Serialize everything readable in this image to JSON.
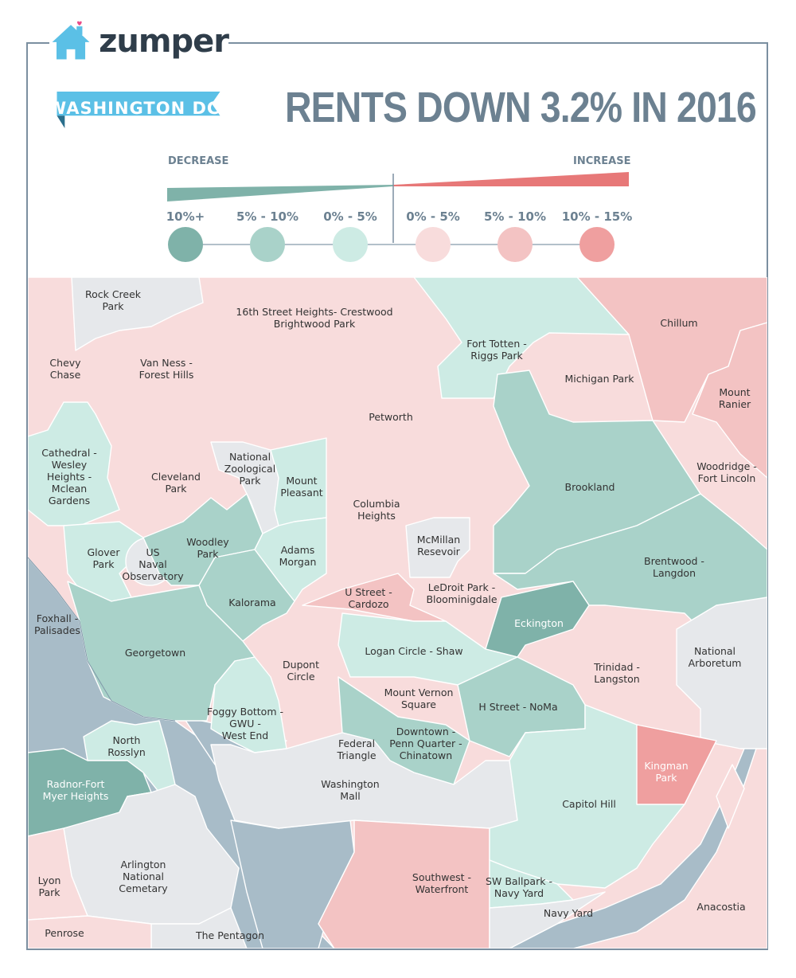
{
  "brand": {
    "name": "zumper",
    "logo_icon": "house-icon"
  },
  "banner": {
    "city": "WASHINGTON DC"
  },
  "headline": "RENTS DOWN 3.2% IN 2016",
  "legend": {
    "decrease_label": "DECREASE",
    "increase_label": "INCREASE",
    "ranges": [
      {
        "label": "10%+",
        "color": "#7fb2a9"
      },
      {
        "label": "5% - 10%",
        "color": "#a9d2c9"
      },
      {
        "label": "0% - 5%",
        "color": "#cdebe4"
      },
      {
        "label": "0% - 5%",
        "color": "#f8dcdc"
      },
      {
        "label": "5% - 10%",
        "color": "#f3c3c3"
      },
      {
        "label": "10% - 15%",
        "color": "#ef9f9f"
      }
    ]
  },
  "neighborhoods": [
    {
      "name": "Rock Creek\nPark"
    },
    {
      "name": "16th Street Heights- Crestwood\nBrightwood Park"
    },
    {
      "name": "Chillum"
    },
    {
      "name": "Fort Totten -\nRiggs Park"
    },
    {
      "name": "Chevy\nChase"
    },
    {
      "name": "Van Ness -\nForest Hills"
    },
    {
      "name": "Michigan  Park"
    },
    {
      "name": "Mount\nRanier"
    },
    {
      "name": "Petworth"
    },
    {
      "name": "Cathedral -\nWesley\nHeights -\nMclean\nGardens"
    },
    {
      "name": "Cleveland\nPark"
    },
    {
      "name": "National\nZoological\nPark"
    },
    {
      "name": "Mount\nPleasant"
    },
    {
      "name": "Woodridge -\nFort Lincoln"
    },
    {
      "name": "Brookland"
    },
    {
      "name": "Columbia\nHeights"
    },
    {
      "name": "McMillan\nResevoir"
    },
    {
      "name": "Glover\nPark"
    },
    {
      "name": "US\nNaval\nObservatory"
    },
    {
      "name": "Woodley\nPark"
    },
    {
      "name": "Adams\nMorgan"
    },
    {
      "name": "Brentwood -\nLangdon"
    },
    {
      "name": "LeDroit Park -\nBloominigdale"
    },
    {
      "name": "U Street -\nCardozo"
    },
    {
      "name": "Kalorama"
    },
    {
      "name": "Foxhall -\nPalisades"
    },
    {
      "name": "Eckington"
    },
    {
      "name": "National\nArboretum"
    },
    {
      "name": "Georgetown"
    },
    {
      "name": "Logan Circle - Shaw"
    },
    {
      "name": "Dupont\nCircle"
    },
    {
      "name": "Trinidad -\nLangston"
    },
    {
      "name": "Mount Vernon\nSquare"
    },
    {
      "name": "H Street - NoMa"
    },
    {
      "name": "Foggy Bottom -\nGWU -\nWest End"
    },
    {
      "name": "Downtown -\nPenn Quarter -\nChinatown"
    },
    {
      "name": "North\nRosslyn"
    },
    {
      "name": "Federal\nTriangle"
    },
    {
      "name": "Kingman\nPark"
    },
    {
      "name": "Radnor-Fort\nMyer Heights"
    },
    {
      "name": "Washington\nMall"
    },
    {
      "name": "Capitol Hill"
    },
    {
      "name": "Arlington\nNational\nCemetary"
    },
    {
      "name": "Lyon\nPark"
    },
    {
      "name": "Southwest -\nWaterfront"
    },
    {
      "name": "SW Ballpark -\nNavy Yard"
    },
    {
      "name": "Anacostia"
    },
    {
      "name": "Navy Yard"
    },
    {
      "name": "Penrose"
    },
    {
      "name": "The Pentagon"
    }
  ],
  "colors": {
    "gray": "#e6e8eb",
    "water": "#a8bcc8",
    "frame": "#7b8fa0",
    "banner": "#5bc0e6"
  }
}
